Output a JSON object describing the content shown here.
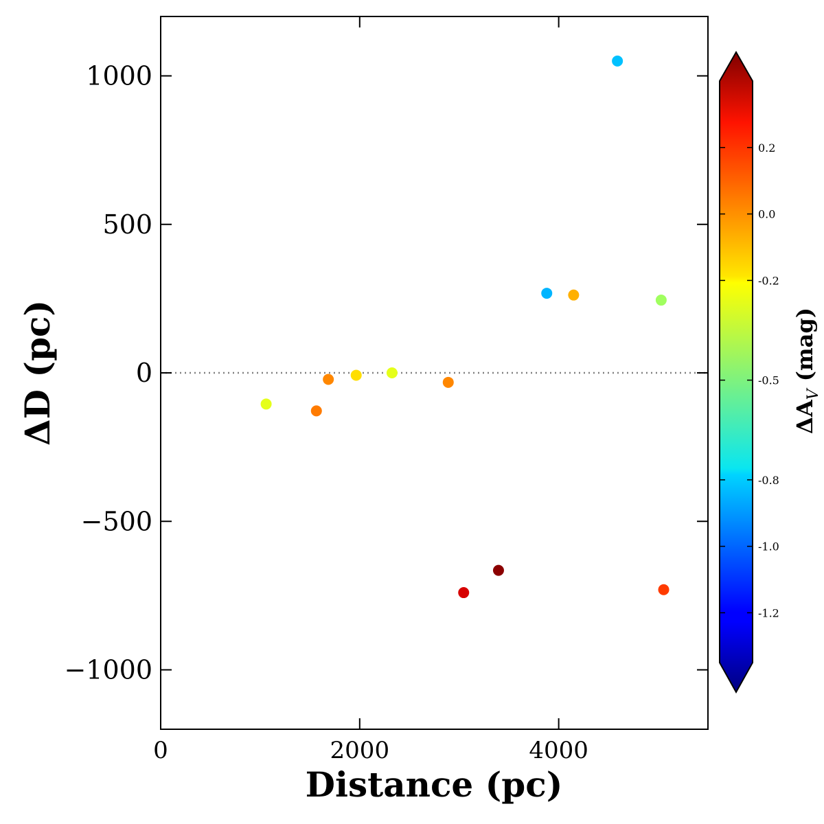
{
  "chart_data": {
    "type": "scatter",
    "title": "",
    "xlabel": "Distance (pc)",
    "ylabel": "ΔD (pc)",
    "xlim": [
      0,
      5500
    ],
    "ylim": [
      -1200,
      1200
    ],
    "xticks": [
      0,
      2000,
      4000
    ],
    "xtick_labels": [
      "0",
      "2000",
      "4000"
    ],
    "yticks": [
      -1000,
      -500,
      0,
      500,
      1000
    ],
    "ytick_labels": [
      "−1000",
      "−500",
      "0",
      "500",
      "1000"
    ],
    "reference_line": {
      "y": 0,
      "style": "dotted",
      "color": "#808080"
    },
    "grid": false,
    "colormap": "jet",
    "colorbar": {
      "label": "ΔA_V (mag)",
      "label_main": "ΔA",
      "label_sub": "V",
      "label_unit": " (mag)",
      "range": [
        -1.35,
        0.4
      ],
      "extend": "both",
      "ticks": [
        0.2,
        0.0,
        -0.2,
        -0.5,
        -0.8,
        -1.0,
        -1.2
      ],
      "tick_labels": [
        "0.2",
        "0.0",
        "-0.2",
        "-0.5",
        "-0.8",
        "-1.0",
        "-1.2"
      ]
    },
    "points": [
      {
        "x": 1060,
        "y": -105,
        "c": -0.3
      },
      {
        "x": 1565,
        "y": -128,
        "c": -0.03
      },
      {
        "x": 1685,
        "y": -22,
        "c": -0.05
      },
      {
        "x": 1965,
        "y": -8,
        "c": -0.2
      },
      {
        "x": 2325,
        "y": 0,
        "c": -0.3
      },
      {
        "x": 2890,
        "y": -32,
        "c": -0.05
      },
      {
        "x": 3045,
        "y": -740,
        "c": 0.25
      },
      {
        "x": 3395,
        "y": -665,
        "c": 0.38
      },
      {
        "x": 3880,
        "y": 268,
        "c": -0.82
      },
      {
        "x": 4150,
        "y": 262,
        "c": -0.12
      },
      {
        "x": 4590,
        "y": 1050,
        "c": -0.8
      },
      {
        "x": 5030,
        "y": 245,
        "c": -0.42
      },
      {
        "x": 5055,
        "y": -730,
        "c": 0.08
      }
    ]
  }
}
